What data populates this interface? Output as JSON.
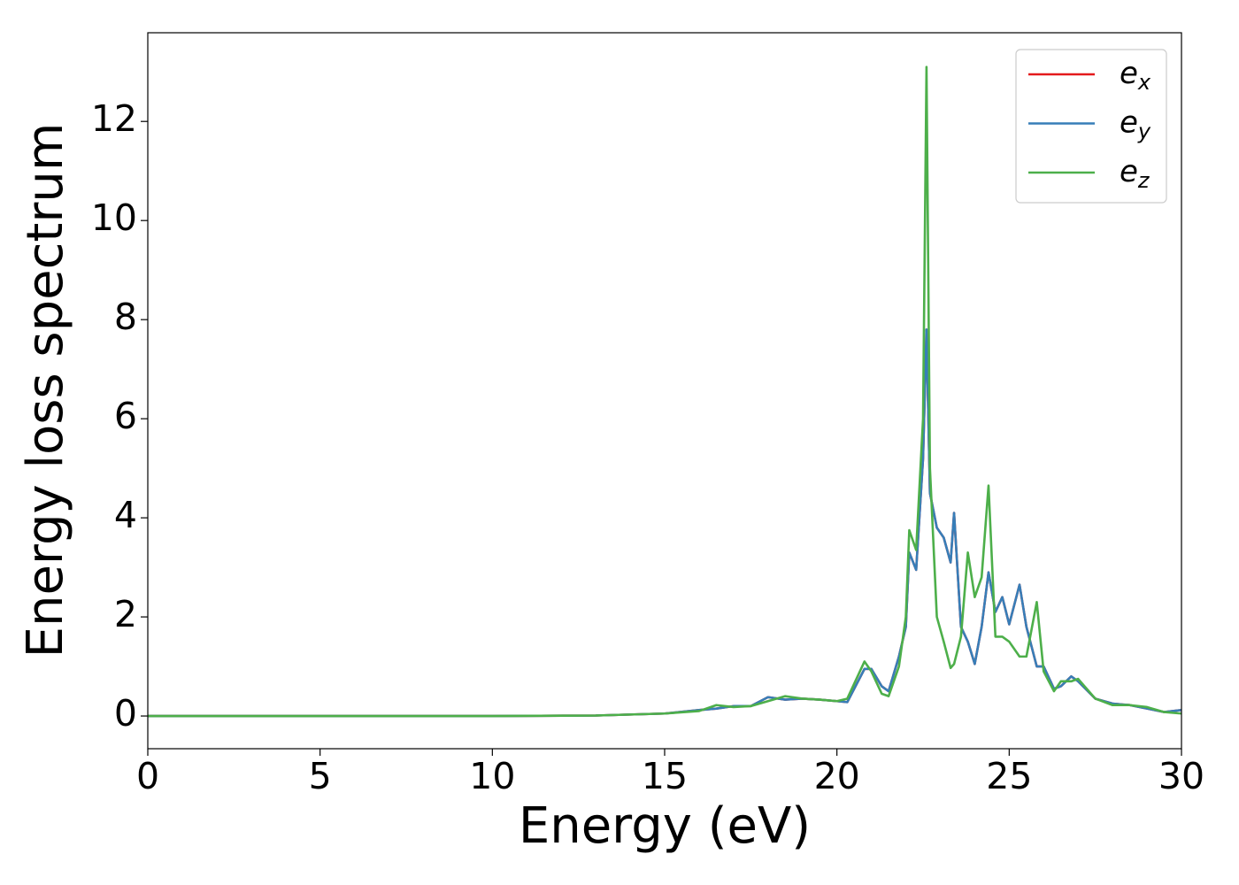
{
  "chart_data": {
    "type": "line",
    "xlabel": "Energy (eV)",
    "ylabel": "Energy loss spectrum",
    "x": [
      0,
      5,
      10,
      13,
      14,
      15,
      16,
      16.5,
      17,
      17.5,
      18,
      18.5,
      19,
      19.5,
      20,
      20.3,
      20.8,
      21,
      21.3,
      21.5,
      21.8,
      22,
      22.1,
      22.3,
      22.5,
      22.6,
      22.7,
      22.9,
      23.1,
      23.3,
      23.4,
      23.6,
      23.8,
      24,
      24.2,
      24.4,
      24.6,
      24.8,
      25,
      25.3,
      25.5,
      25.8,
      26,
      26.3,
      26.5,
      26.8,
      27,
      27.5,
      28,
      28.5,
      29,
      29.5,
      30
    ],
    "series": [
      {
        "name": "ex",
        "color": "#e41a1c",
        "values": [
          0,
          0,
          0,
          0.01,
          0.03,
          0.05,
          0.12,
          0.15,
          0.2,
          0.2,
          0.38,
          0.33,
          0.35,
          0.33,
          0.3,
          0.28,
          0.95,
          0.95,
          0.6,
          0.5,
          1.2,
          1.8,
          3.3,
          2.95,
          5.2,
          7.8,
          4.5,
          3.8,
          3.6,
          3.1,
          4.1,
          1.8,
          1.5,
          1.05,
          1.8,
          2.9,
          2.1,
          2.4,
          1.85,
          2.65,
          1.8,
          1.0,
          1.0,
          0.55,
          0.6,
          0.8,
          0.7,
          0.35,
          0.25,
          0.22,
          0.15,
          0.08,
          0.12
        ]
      },
      {
        "name": "ey",
        "color": "#377eb8",
        "values": [
          0,
          0,
          0,
          0.01,
          0.03,
          0.05,
          0.12,
          0.15,
          0.2,
          0.2,
          0.38,
          0.33,
          0.35,
          0.33,
          0.3,
          0.28,
          0.95,
          0.95,
          0.6,
          0.5,
          1.2,
          1.8,
          3.3,
          2.95,
          5.2,
          7.8,
          4.5,
          3.8,
          3.6,
          3.1,
          4.1,
          1.8,
          1.5,
          1.05,
          1.8,
          2.9,
          2.1,
          2.4,
          1.85,
          2.65,
          1.8,
          1.0,
          1.0,
          0.55,
          0.6,
          0.8,
          0.7,
          0.35,
          0.25,
          0.22,
          0.15,
          0.08,
          0.12
        ]
      },
      {
        "name": "ez",
        "color": "#4daf4a",
        "values": [
          0,
          0,
          0,
          0.01,
          0.03,
          0.05,
          0.1,
          0.22,
          0.18,
          0.2,
          0.3,
          0.4,
          0.35,
          0.33,
          0.3,
          0.35,
          1.1,
          0.9,
          0.45,
          0.4,
          1.0,
          2.0,
          3.75,
          3.35,
          6.0,
          13.1,
          5.0,
          2.0,
          1.5,
          0.97,
          1.05,
          1.6,
          3.3,
          2.4,
          2.8,
          4.65,
          1.6,
          1.6,
          1.5,
          1.2,
          1.2,
          2.3,
          0.9,
          0.5,
          0.7,
          0.7,
          0.75,
          0.35,
          0.22,
          0.22,
          0.18,
          0.08,
          0.05
        ]
      }
    ],
    "xlim": [
      0,
      30
    ],
    "xticks": [
      0,
      5,
      10,
      15,
      20,
      25,
      30
    ],
    "ylim": [
      -0.66,
      13.79
    ],
    "yticks": [
      0,
      2,
      4,
      6,
      8,
      10,
      12
    ],
    "grid": false,
    "legend": "upper right"
  }
}
